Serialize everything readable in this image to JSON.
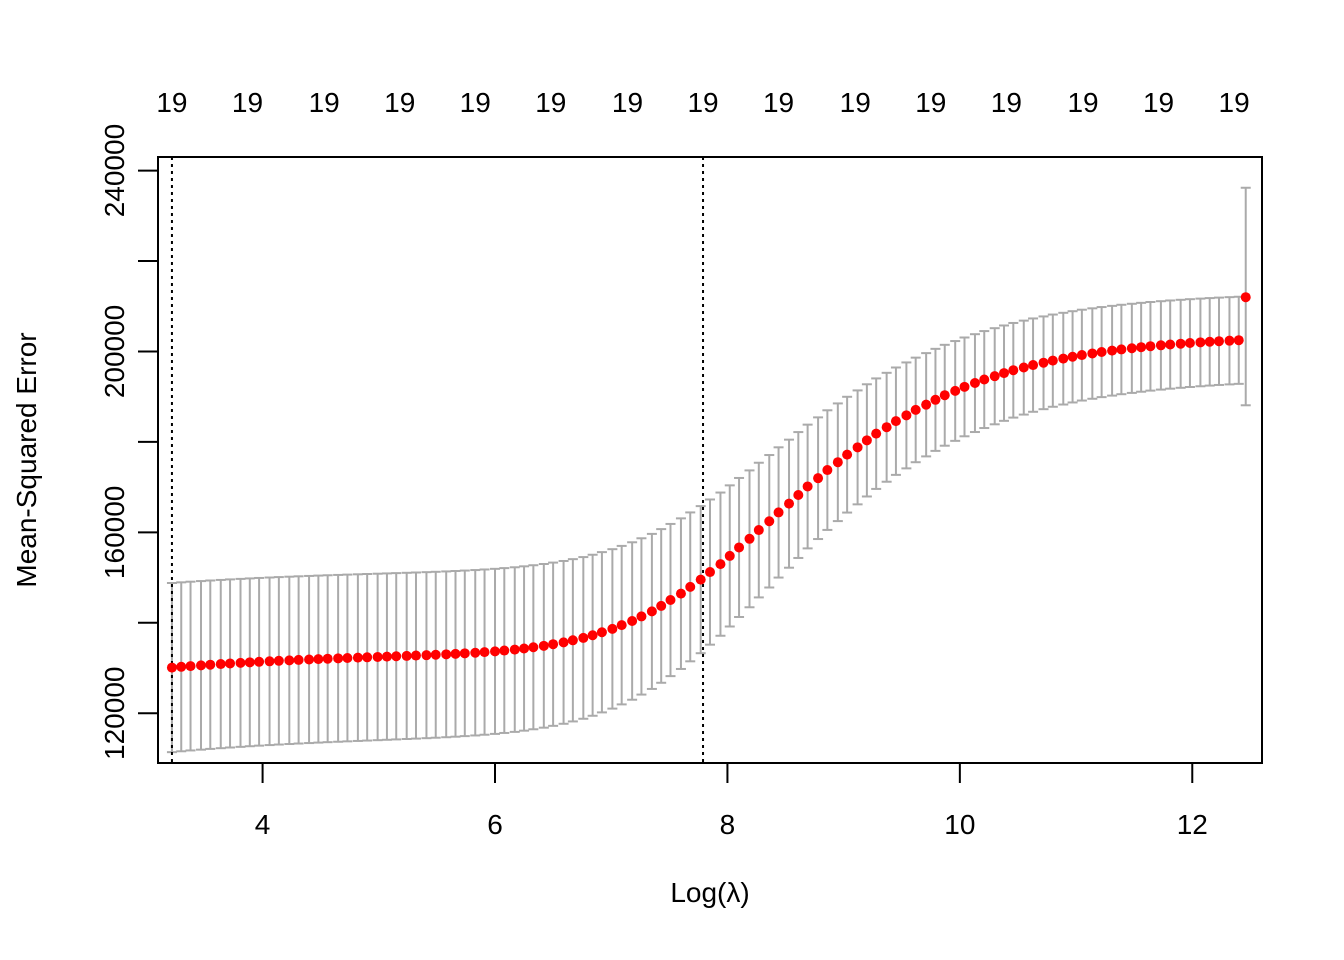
{
  "chart_data": {
    "type": "scatter",
    "title": "",
    "xlabel": "Log(λ)",
    "ylabel": "Mean-Squared Error",
    "xlim": [
      3.1,
      12.6
    ],
    "ylim": [
      109000,
      243000
    ],
    "x_ticks": [
      4,
      6,
      8,
      10,
      12
    ],
    "x_tick_labels": [
      "4",
      "6",
      "8",
      "10",
      "12"
    ],
    "y_ticks": [
      120000,
      160000,
      200000,
      240000
    ],
    "y_tick_labels": [
      "120000",
      "160000",
      "200000",
      "240000"
    ],
    "top_axis": {
      "ticks": [
        3.22,
        3.87,
        4.53,
        5.18,
        5.83,
        6.48,
        7.14,
        7.79,
        8.44,
        9.1,
        9.75,
        10.4,
        11.06,
        11.71,
        12.36
      ],
      "labels": [
        "19",
        "19",
        "19",
        "19",
        "19",
        "19",
        "19",
        "19",
        "19",
        "19",
        "19",
        "19",
        "19",
        "19",
        "19"
      ]
    },
    "vlines": [
      3.22,
      7.79
    ],
    "grid": false,
    "point_color": "#ff0000",
    "errorbar_color": "#aaaaaa",
    "x": [
      3.22,
      3.3,
      3.38,
      3.47,
      3.55,
      3.64,
      3.72,
      3.81,
      3.89,
      3.97,
      4.06,
      4.14,
      4.23,
      4.31,
      4.4,
      4.48,
      4.56,
      4.65,
      4.73,
      4.82,
      4.9,
      4.99,
      5.07,
      5.15,
      5.24,
      5.32,
      5.41,
      5.49,
      5.58,
      5.66,
      5.74,
      5.83,
      5.91,
      6.0,
      6.08,
      6.17,
      6.25,
      6.33,
      6.42,
      6.5,
      6.59,
      6.67,
      6.76,
      6.84,
      6.92,
      7.01,
      7.09,
      7.18,
      7.26,
      7.35,
      7.43,
      7.51,
      7.6,
      7.68,
      7.77,
      7.85,
      7.94,
      8.02,
      8.1,
      8.19,
      8.27,
      8.36,
      8.44,
      8.53,
      8.61,
      8.69,
      8.78,
      8.86,
      8.95,
      9.03,
      9.12,
      9.2,
      9.28,
      9.37,
      9.45,
      9.54,
      9.62,
      9.71,
      9.79,
      9.87,
      9.96,
      10.04,
      10.13,
      10.21,
      10.3,
      10.38,
      10.46,
      10.55,
      10.63,
      10.72,
      10.8,
      10.89,
      10.97,
      11.05,
      11.14,
      11.22,
      11.31,
      11.39,
      11.48,
      11.56,
      11.64,
      11.73,
      11.81,
      11.9,
      11.98,
      12.07,
      12.15,
      12.23,
      12.32,
      12.4,
      12.46
    ],
    "mse": [
      130100,
      130271,
      130434,
      130589,
      130737,
      130878,
      131013,
      131141,
      131263,
      131379,
      131490,
      131596,
      131697,
      131794,
      131886,
      131975,
      132060,
      132142,
      132222,
      132300,
      132376,
      132451,
      132526,
      132602,
      132680,
      132760,
      132844,
      132933,
      133029,
      133134,
      133249,
      133377,
      133521,
      133684,
      133869,
      134079,
      134320,
      134594,
      134908,
      135266,
      135673,
      136135,
      136658,
      137249,
      137913,
      138656,
      139484,
      140402,
      141414,
      142523,
      143732,
      145040,
      146447,
      147950,
      149544,
      151222,
      152975,
      154793,
      156663,
      158574,
      160511,
      162461,
      164412,
      166350,
      168265,
      170147,
      171986,
      173777,
      175513,
      177190,
      178804,
      180353,
      181836,
      183250,
      184597,
      185876,
      187087,
      188232,
      189313,
      190330,
      191285,
      192182,
      193021,
      193805,
      194538,
      195222,
      195858,
      196450,
      197000,
      197511,
      197986,
      198426,
      198833,
      199210,
      199559,
      199881,
      200180,
      200455,
      200710,
      200944,
      201161,
      201361,
      201545,
      201715,
      201872,
      202016,
      202149,
      202272,
      202385,
      202489,
      212000
    ],
    "lower": [
      111400,
      111593,
      111777,
      111951,
      112118,
      112276,
      112428,
      112571,
      112709,
      112839,
      112964,
      113083,
      113197,
      113306,
      113410,
      113510,
      113606,
      113698,
      113788,
      113876,
      113962,
      114046,
      114131,
      114216,
      114304,
      114394,
      114489,
      114589,
      114697,
      114815,
      114945,
      115089,
      115251,
      115435,
      115643,
      115880,
      116151,
      116459,
      116812,
      117215,
      117673,
      118193,
      118781,
      119445,
      120192,
      121028,
      121960,
      122992,
      124130,
      125378,
      126739,
      128210,
      129793,
      131484,
      133277,
      135165,
      137137,
      139183,
      141286,
      143436,
      145615,
      147808,
      150003,
      152183,
      154337,
      156454,
      158523,
      160538,
      162491,
      164377,
      166193,
      167935,
      169604,
      171194,
      172710,
      174148,
      175511,
      176799,
      178015,
      179159,
      180233,
      181242,
      182186,
      183068,
      183893,
      184662,
      185377,
      186043,
      186662,
      187237,
      187771,
      188266,
      188724,
      189148,
      189541,
      189903,
      190239,
      190549,
      190836,
      191099,
      191343,
      191568,
      191775,
      191966,
      192143,
      192305,
      192455,
      192593,
      192720,
      192837,
      188100
    ],
    "upper": [
      148800,
      148949,
      149091,
      149227,
      149356,
      149480,
      149598,
      149709,
      149816,
      149918,
      150015,
      150108,
      150196,
      150281,
      150362,
      150439,
      150514,
      150585,
      150656,
      150724,
      150790,
      150856,
      150921,
      150988,
      151056,
      151126,
      151199,
      151277,
      151361,
      151453,
      151553,
      151665,
      151791,
      151933,
      152095,
      152278,
      152488,
      152728,
      153002,
      153315,
      153671,
      154075,
      154533,
      155050,
      155630,
      156280,
      157004,
      157807,
      158692,
      159662,
      160719,
      161863,
      163094,
      164409,
      165803,
      167270,
      168803,
      170393,
      172028,
      173700,
      175394,
      177099,
      178804,
      180499,
      182174,
      183819,
      185427,
      186993,
      188512,
      189978,
      191389,
      192744,
      194041,
      195278,
      196456,
      197574,
      198633,
      199634,
      200579,
      201468,
      202303,
      203087,
      203821,
      204506,
      205147,
      205745,
      206301,
      206819,
      207300,
      207747,
      208162,
      208547,
      208903,
      209233,
      209538,
      209820,
      210081,
      210322,
      210544,
      210749,
      210939,
      211114,
      211275,
      211423,
      211560,
      211686,
      211802,
      211909,
      212008,
      212098,
      236200
    ]
  }
}
